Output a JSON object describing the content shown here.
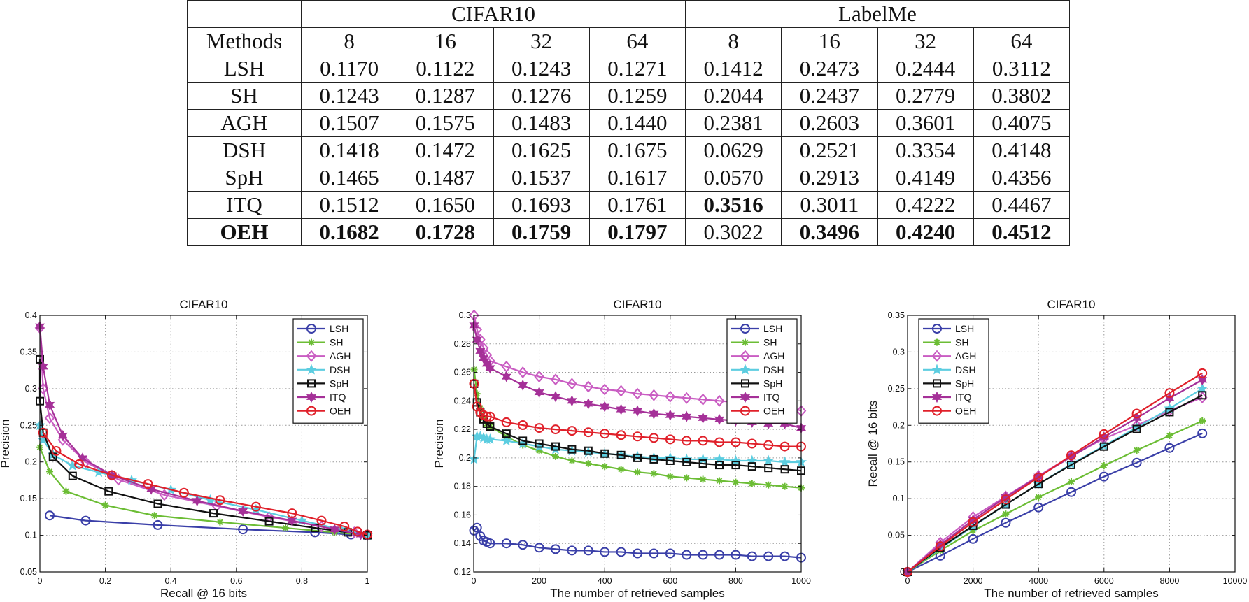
{
  "table": {
    "corner": "",
    "groups": [
      "CIFAR10",
      "LabelMe"
    ],
    "methods_label": "Methods",
    "bits": [
      "8",
      "16",
      "32",
      "64",
      "8",
      "16",
      "32",
      "64"
    ],
    "rows": [
      {
        "method": "LSH",
        "values": [
          "0.1170",
          "0.1122",
          "0.1243",
          "0.1271",
          "0.1412",
          "0.2473",
          "0.2444",
          "0.3112"
        ],
        "bold": [
          false,
          false,
          false,
          false,
          false,
          false,
          false,
          false
        ]
      },
      {
        "method": "SH",
        "values": [
          "0.1243",
          "0.1287",
          "0.1276",
          "0.1259",
          "0.2044",
          "0.2437",
          "0.2779",
          "0.3802"
        ],
        "bold": [
          false,
          false,
          false,
          false,
          false,
          false,
          false,
          false
        ]
      },
      {
        "method": "AGH",
        "values": [
          "0.1507",
          "0.1575",
          "0.1483",
          "0.1440",
          "0.2381",
          "0.2603",
          "0.3601",
          "0.4075"
        ],
        "bold": [
          false,
          false,
          false,
          false,
          false,
          false,
          false,
          false
        ]
      },
      {
        "method": "DSH",
        "values": [
          "0.1418",
          "0.1472",
          "0.1625",
          "0.1675",
          "0.0629",
          "0.2521",
          "0.3354",
          "0.4148"
        ],
        "bold": [
          false,
          false,
          false,
          false,
          false,
          false,
          false,
          false
        ]
      },
      {
        "method": "SpH",
        "values": [
          "0.1465",
          "0.1487",
          "0.1537",
          "0.1617",
          "0.0570",
          "0.2913",
          "0.4149",
          "0.4356"
        ],
        "bold": [
          false,
          false,
          false,
          false,
          false,
          false,
          false,
          false
        ]
      },
      {
        "method": "ITQ",
        "values": [
          "0.1512",
          "0.1650",
          "0.1693",
          "0.1761",
          "0.3516",
          "0.3011",
          "0.4222",
          "0.4467"
        ],
        "bold": [
          false,
          false,
          false,
          false,
          true,
          false,
          false,
          false
        ]
      },
      {
        "method": "OEH",
        "values": [
          "0.1682",
          "0.1728",
          "0.1759",
          "0.1797",
          "0.3022",
          "0.3496",
          "0.4240",
          "0.4512"
        ],
        "bold": [
          true,
          true,
          true,
          true,
          false,
          true,
          true,
          true
        ],
        "method_bold": true
      }
    ]
  },
  "series_styles": [
    {
      "name": "LSH",
      "color": "#3a3fa8",
      "marker": "circle"
    },
    {
      "name": "SH",
      "color": "#6cbd35",
      "marker": "asterisk"
    },
    {
      "name": "AGH",
      "color": "#c95cc2",
      "marker": "diamond"
    },
    {
      "name": "DSH",
      "color": "#5ccde0",
      "marker": "star"
    },
    {
      "name": "SpH",
      "color": "#111111",
      "marker": "square"
    },
    {
      "name": "ITQ",
      "color": "#a53098",
      "marker": "hexagram"
    },
    {
      "name": "OEH",
      "color": "#e0202a",
      "marker": "circle"
    }
  ],
  "chart_data": [
    {
      "type": "line",
      "title": "CIFAR10",
      "xlabel": "Recall @ 16 bits",
      "ylabel": "Precision",
      "xlim": [
        0,
        1
      ],
      "ylim": [
        0.05,
        0.4
      ],
      "xticks": [
        0,
        0.2,
        0.4,
        0.6,
        0.8,
        1
      ],
      "xtick_labels": [
        "0",
        "0.2",
        "0.4",
        "0.6",
        "0.8",
        "1"
      ],
      "yticks": [
        0.05,
        0.1,
        0.15,
        0.2,
        0.25,
        0.3,
        0.35,
        0.4
      ],
      "ytick_labels": [
        "0.05",
        "0.1",
        "0.15",
        "0.2",
        "0.25",
        "0.3",
        "0.35",
        "0.4"
      ],
      "grid": true,
      "legend_position": "top-right",
      "series": [
        {
          "name": "LSH",
          "x": [
            0.03,
            0.14,
            0.36,
            0.62,
            0.84,
            0.95,
            1.0
          ],
          "y": [
            0.127,
            0.12,
            0.114,
            0.108,
            0.104,
            0.101,
            0.1
          ]
        },
        {
          "name": "SH",
          "x": [
            0.0,
            0.03,
            0.08,
            0.2,
            0.35,
            0.55,
            0.75,
            0.9,
            1.0
          ],
          "y": [
            0.22,
            0.187,
            0.16,
            0.141,
            0.127,
            0.118,
            0.11,
            0.104,
            0.1
          ]
        },
        {
          "name": "AGH",
          "x": [
            0.0,
            0.01,
            0.03,
            0.07,
            0.14,
            0.24,
            0.38,
            0.54,
            0.7,
            0.86,
            0.96,
            1.0
          ],
          "y": [
            0.383,
            0.3,
            0.26,
            0.23,
            0.2,
            0.176,
            0.155,
            0.14,
            0.125,
            0.112,
            0.104,
            0.1
          ]
        },
        {
          "name": "DSH",
          "x": [
            0.0,
            0.01,
            0.04,
            0.1,
            0.18,
            0.28,
            0.4,
            0.52,
            0.66,
            0.8,
            0.92,
            1.0
          ],
          "y": [
            0.25,
            0.23,
            0.21,
            0.195,
            0.186,
            0.175,
            0.162,
            0.148,
            0.135,
            0.12,
            0.108,
            0.1
          ]
        },
        {
          "name": "SpH",
          "x": [
            0.0,
            0.0,
            0.01,
            0.04,
            0.1,
            0.21,
            0.36,
            0.53,
            0.7,
            0.84,
            0.94,
            1.0
          ],
          "y": [
            0.34,
            0.283,
            0.24,
            0.207,
            0.181,
            0.16,
            0.143,
            0.13,
            0.119,
            0.11,
            0.104,
            0.1
          ]
        },
        {
          "name": "ITQ",
          "x": [
            0.0,
            0.01,
            0.03,
            0.07,
            0.13,
            0.22,
            0.34,
            0.48,
            0.62,
            0.77,
            0.9,
            0.98
          ],
          "y": [
            0.385,
            0.33,
            0.278,
            0.236,
            0.205,
            0.182,
            0.163,
            0.147,
            0.133,
            0.12,
            0.108,
            0.101
          ]
        },
        {
          "name": "OEH",
          "x": [
            0.01,
            0.05,
            0.12,
            0.22,
            0.33,
            0.44,
            0.55,
            0.66,
            0.77,
            0.86,
            0.93,
            0.97,
            1.0
          ],
          "y": [
            0.24,
            0.215,
            0.197,
            0.182,
            0.17,
            0.158,
            0.148,
            0.139,
            0.13,
            0.12,
            0.112,
            0.105,
            0.101
          ]
        }
      ]
    },
    {
      "type": "line",
      "title": "CIFAR10",
      "xlabel": "The number of retrieved samples",
      "ylabel": "Precision",
      "xlim": [
        0,
        1000
      ],
      "ylim": [
        0.12,
        0.3
      ],
      "xticks": [
        0,
        200,
        400,
        600,
        800,
        1000
      ],
      "xtick_labels": [
        "0",
        "200",
        "400",
        "600",
        "800",
        "1000"
      ],
      "yticks": [
        0.12,
        0.14,
        0.16,
        0.18,
        0.2,
        0.22,
        0.24,
        0.26,
        0.28,
        0.3
      ],
      "ytick_labels": [
        "0.12",
        "0.14",
        "0.16",
        "0.18",
        "0.2",
        "0.22",
        "0.24",
        "0.26",
        "0.28",
        "0.3"
      ],
      "grid": true,
      "legend_position": "top-right",
      "series": [
        {
          "name": "LSH",
          "x": [
            1,
            10,
            20,
            30,
            40,
            50,
            100,
            150,
            200,
            250,
            300,
            350,
            400,
            450,
            500,
            550,
            600,
            650,
            700,
            750,
            800,
            850,
            900,
            950,
            1000
          ],
          "y": [
            0.149,
            0.151,
            0.145,
            0.142,
            0.141,
            0.14,
            0.14,
            0.139,
            0.137,
            0.136,
            0.135,
            0.135,
            0.134,
            0.134,
            0.133,
            0.133,
            0.133,
            0.132,
            0.132,
            0.132,
            0.132,
            0.131,
            0.131,
            0.131,
            0.13
          ]
        },
        {
          "name": "SH",
          "x": [
            1,
            10,
            20,
            30,
            40,
            50,
            100,
            150,
            200,
            250,
            300,
            350,
            400,
            450,
            500,
            550,
            600,
            650,
            700,
            750,
            800,
            850,
            900,
            950,
            1000
          ],
          "y": [
            0.262,
            0.245,
            0.235,
            0.228,
            0.224,
            0.222,
            0.215,
            0.209,
            0.205,
            0.201,
            0.198,
            0.196,
            0.194,
            0.192,
            0.19,
            0.189,
            0.187,
            0.186,
            0.185,
            0.184,
            0.183,
            0.182,
            0.181,
            0.18,
            0.179
          ]
        },
        {
          "name": "AGH",
          "x": [
            1,
            10,
            20,
            30,
            40,
            50,
            100,
            150,
            200,
            250,
            300,
            350,
            400,
            450,
            500,
            550,
            600,
            650,
            700,
            750,
            800,
            850,
            900,
            950,
            1000
          ],
          "y": [
            0.3,
            0.29,
            0.283,
            0.277,
            0.272,
            0.268,
            0.264,
            0.26,
            0.257,
            0.255,
            0.252,
            0.25,
            0.248,
            0.247,
            0.245,
            0.244,
            0.243,
            0.242,
            0.241,
            0.24,
            0.239,
            0.238,
            0.238,
            0.237,
            0.233
          ]
        },
        {
          "name": "DSH",
          "x": [
            1,
            10,
            20,
            30,
            40,
            50,
            100,
            150,
            200,
            250,
            300,
            350,
            400,
            450,
            500,
            550,
            600,
            650,
            700,
            750,
            800,
            850,
            900,
            950,
            1000
          ],
          "y": [
            0.199,
            0.215,
            0.215,
            0.214,
            0.213,
            0.213,
            0.212,
            0.21,
            0.208,
            0.206,
            0.205,
            0.204,
            0.203,
            0.202,
            0.201,
            0.2,
            0.2,
            0.199,
            0.199,
            0.199,
            0.198,
            0.198,
            0.198,
            0.197,
            0.197
          ]
        },
        {
          "name": "SpH",
          "x": [
            1,
            10,
            20,
            30,
            40,
            50,
            100,
            150,
            200,
            250,
            300,
            350,
            400,
            450,
            500,
            550,
            600,
            650,
            700,
            750,
            800,
            850,
            900,
            950,
            1000
          ],
          "y": [
            0.252,
            0.239,
            0.232,
            0.227,
            0.224,
            0.222,
            0.217,
            0.212,
            0.21,
            0.208,
            0.206,
            0.205,
            0.203,
            0.202,
            0.2,
            0.199,
            0.198,
            0.197,
            0.196,
            0.195,
            0.195,
            0.194,
            0.193,
            0.192,
            0.191
          ]
        },
        {
          "name": "ITQ",
          "x": [
            1,
            10,
            20,
            30,
            40,
            50,
            100,
            150,
            200,
            250,
            300,
            350,
            400,
            450,
            500,
            550,
            600,
            650,
            700,
            750,
            800,
            850,
            900,
            950,
            1000
          ],
          "y": [
            0.293,
            0.283,
            0.275,
            0.27,
            0.266,
            0.263,
            0.257,
            0.251,
            0.246,
            0.243,
            0.24,
            0.238,
            0.236,
            0.234,
            0.233,
            0.231,
            0.23,
            0.229,
            0.228,
            0.227,
            0.226,
            0.225,
            0.224,
            0.224,
            0.221
          ]
        },
        {
          "name": "OEH",
          "x": [
            1,
            10,
            20,
            30,
            40,
            50,
            100,
            150,
            200,
            250,
            300,
            350,
            400,
            450,
            500,
            550,
            600,
            650,
            700,
            750,
            800,
            850,
            900,
            950,
            1000
          ],
          "y": [
            0.252,
            0.236,
            0.232,
            0.23,
            0.229,
            0.229,
            0.225,
            0.223,
            0.221,
            0.22,
            0.219,
            0.218,
            0.217,
            0.216,
            0.215,
            0.214,
            0.213,
            0.212,
            0.212,
            0.211,
            0.211,
            0.21,
            0.209,
            0.208,
            0.208
          ]
        }
      ]
    },
    {
      "type": "line",
      "title": "CIFAR10",
      "xlabel": "The number of retrieved samples",
      "ylabel": "Recall @ 16 bits",
      "xlim": [
        0,
        10000
      ],
      "ylim": [
        0,
        0.35
      ],
      "xticks": [
        0,
        2000,
        4000,
        6000,
        8000,
        10000
      ],
      "xtick_labels": [
        "0",
        "2000",
        "4000",
        "6000",
        "8000",
        "10000"
      ],
      "yticks": [
        0,
        0.05,
        0.1,
        0.15,
        0.2,
        0.25,
        0.3,
        0.35
      ],
      "ytick_labels": [
        "0",
        "0.05",
        "0.1",
        "0.15",
        "0.2",
        "0.25",
        "0.3",
        "0.35"
      ],
      "grid": true,
      "legend_position": "top-left",
      "series": [
        {
          "name": "LSH",
          "x": [
            0,
            1000,
            2000,
            3000,
            4000,
            5000,
            6000,
            7000,
            8000,
            9000
          ],
          "y": [
            0,
            0.022,
            0.045,
            0.067,
            0.088,
            0.109,
            0.13,
            0.149,
            0.169,
            0.189
          ]
        },
        {
          "name": "SH",
          "x": [
            0,
            1000,
            2000,
            3000,
            4000,
            5000,
            6000,
            7000,
            8000,
            9000
          ],
          "y": [
            0,
            0.029,
            0.056,
            0.079,
            0.102,
            0.123,
            0.145,
            0.166,
            0.186,
            0.206
          ]
        },
        {
          "name": "AGH",
          "x": [
            0,
            1000,
            2000,
            3000,
            4000,
            5000,
            6000,
            7000,
            8000,
            9000
          ],
          "y": [
            0,
            0.04,
            0.075,
            0.103,
            0.131,
            0.158,
            0.182,
            0.2,
            0.22,
            0.238
          ]
        },
        {
          "name": "DSH",
          "x": [
            0,
            1000,
            2000,
            3000,
            4000,
            5000,
            6000,
            7000,
            8000,
            9000
          ],
          "y": [
            0,
            0.032,
            0.062,
            0.092,
            0.12,
            0.147,
            0.172,
            0.197,
            0.223,
            0.25
          ]
        },
        {
          "name": "SpH",
          "x": [
            0,
            1000,
            2000,
            3000,
            4000,
            5000,
            6000,
            7000,
            8000,
            9000
          ],
          "y": [
            0,
            0.033,
            0.063,
            0.092,
            0.12,
            0.146,
            0.171,
            0.195,
            0.218,
            0.241
          ]
        },
        {
          "name": "ITQ",
          "x": [
            0,
            1000,
            2000,
            3000,
            4000,
            5000,
            6000,
            7000,
            8000,
            9000
          ],
          "y": [
            0,
            0.037,
            0.071,
            0.102,
            0.13,
            0.157,
            0.184,
            0.21,
            0.237,
            0.262
          ]
        },
        {
          "name": "OEH",
          "x": [
            0,
            1000,
            2000,
            3000,
            4000,
            5000,
            6000,
            7000,
            8000,
            9000
          ],
          "y": [
            0,
            0.035,
            0.068,
            0.099,
            0.129,
            0.159,
            0.188,
            0.216,
            0.244,
            0.271
          ]
        }
      ]
    }
  ]
}
